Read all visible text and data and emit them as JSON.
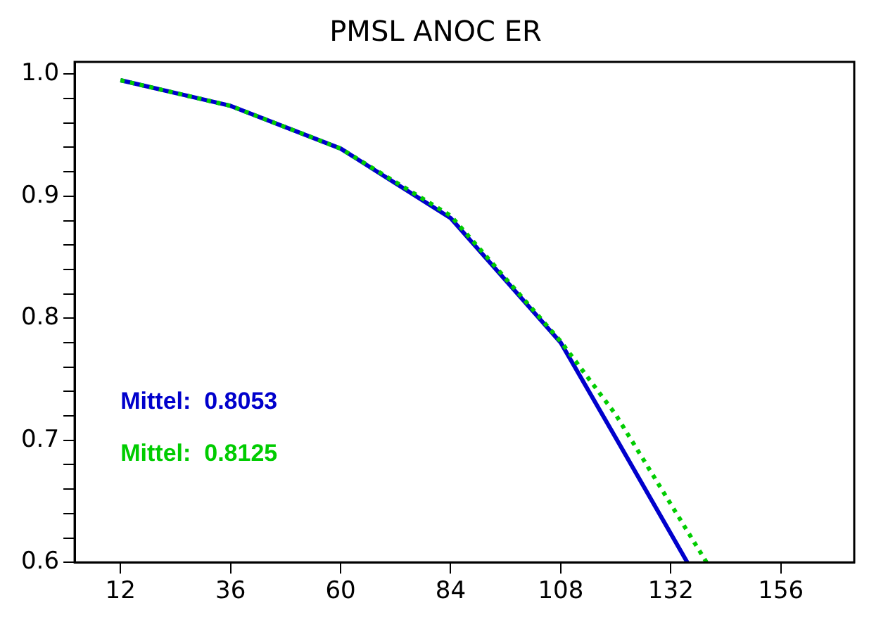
{
  "chart_data": {
    "type": "line",
    "title": "PMSL ANOC ER",
    "xlim": [
      2,
      172
    ],
    "xticks": [
      12,
      36,
      60,
      84,
      108,
      132,
      156
    ],
    "ylim": [
      0.6,
      1.01
    ],
    "yticks": [
      {
        "value": 0.6,
        "label": "0.6"
      },
      {
        "value": 0.62,
        "label": null
      },
      {
        "value": 0.64,
        "label": null
      },
      {
        "value": 0.66,
        "label": null
      },
      {
        "value": 0.68,
        "label": null
      },
      {
        "value": 0.7,
        "label": "0.7"
      },
      {
        "value": 0.72,
        "label": null
      },
      {
        "value": 0.74,
        "label": null
      },
      {
        "value": 0.76,
        "label": null
      },
      {
        "value": 0.78,
        "label": null
      },
      {
        "value": 0.8,
        "label": "0.8"
      },
      {
        "value": 0.82,
        "label": null
      },
      {
        "value": 0.84,
        "label": null
      },
      {
        "value": 0.86,
        "label": null
      },
      {
        "value": 0.88,
        "label": null
      },
      {
        "value": 0.9,
        "label": "0.9"
      },
      {
        "value": 0.92,
        "label": null
      },
      {
        "value": 0.94,
        "label": null
      },
      {
        "value": 0.96,
        "label": null
      },
      {
        "value": 0.98,
        "label": null
      },
      {
        "value": 1.0,
        "label": "1.0"
      }
    ],
    "grid": false,
    "legend": false,
    "series": [
      {
        "color": "#0000cc",
        "line_style": "solid",
        "x": [
          12,
          36,
          60,
          84,
          108,
          120,
          135.6
        ],
        "values": [
          0.995,
          0.974,
          0.939,
          0.882,
          0.78,
          0.702,
          0.6
        ]
      },
      {
        "color": "#00cc00",
        "line_style": "dotted",
        "x": [
          12,
          36,
          60,
          84,
          108,
          120,
          139.8
        ],
        "values": [
          0.995,
          0.974,
          0.939,
          0.884,
          0.781,
          0.721,
          0.6
        ]
      }
    ],
    "annotations": [
      "Mittel:  0.8053",
      "Mittel:  0.8125"
    ]
  }
}
